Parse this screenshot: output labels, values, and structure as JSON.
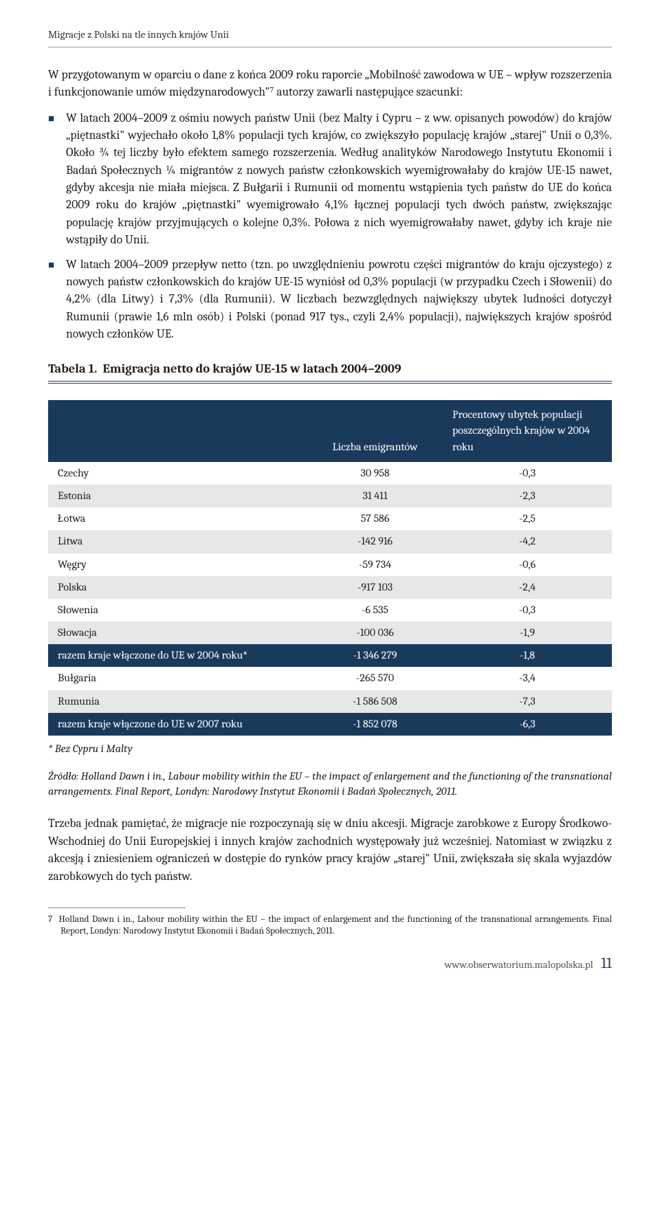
{
  "colors": {
    "brand": "#1a3a5c",
    "text": "#231f20",
    "shade": "#e6e7e9",
    "rule": "#9a9a9a"
  },
  "running_head": "Migracje z Polski na tle innych krajów Unii",
  "intro": "W przygotowanym w oparciu o dane z końca 2009 roku raporcie „Mobilność zawodowa w UE – wpływ rozszerzenia i funkcjonowanie umów międzynarodowych\"⁷ autorzy zawarli następujące szacunki:",
  "bullets": [
    "W latach 2004–2009 z ośmiu nowych państw Unii (bez Malty i Cypru – z ww. opisanych powodów) do krajów „piętnastki\" wyjechało około 1,8% populacji tych krajów, co zwiększyło populację krajów „starej\" Unii o 0,3%. Około ¾ tej liczby było efektem samego rozszerzenia. Według analityków Narodowego Instytutu Ekonomii i Badań Społecznych ¼ migrantów z nowych państw członkowskich wyemigrowałaby do krajów UE-15 nawet, gdyby akcesja nie miała miejsca. Z Bułgarii i Rumunii od momentu wstąpienia tych państw do UE do końca 2009 roku do krajów „piętnastki\" wyemigrowało 4,1% łącznej populacji tych dwóch państw, zwiększając populację krajów przyjmujących o kolejne 0,3%. Połowa z nich wyemigrowałaby nawet, gdyby ich kraje nie wstąpiły do Unii.",
    "W latach 2004–2009 przepływ netto (tzn. po uwzględnieniu powrotu części migrantów do kraju ojczystego) z nowych państw członkowskich do krajów UE-15 wyniósł od 0,3% populacji (w przypadku Czech i Słowenii) do 4,2% (dla Litwy) i 7,3% (dla Rumunii). W liczbach bezwzględnych największy ubytek ludności dotyczył Rumunii (prawie 1,6 mln osób) i Polski (ponad 917 tys., czyli 2,4% populacji), największych krajów spośród nowych członków UE."
  ],
  "table": {
    "label": "Tabela 1.",
    "title": "Emigracja netto do krajów UE-15 w latach 2004–2009",
    "columns": [
      "",
      "Liczba emigrantów",
      "Procentowy ubytek populacji poszczególnych krajów w 2004 roku"
    ],
    "rows": [
      {
        "country": "Czechy",
        "emigrants": "30 958",
        "pct": "-0,3",
        "type": "light"
      },
      {
        "country": "Estonia",
        "emigrants": "31 411",
        "pct": "-2,3",
        "type": "shade"
      },
      {
        "country": "Łotwa",
        "emigrants": "57 586",
        "pct": "-2,5",
        "type": "light"
      },
      {
        "country": "Litwa",
        "emigrants": "-142 916",
        "pct": "-4,2",
        "type": "shade"
      },
      {
        "country": "Węgry",
        "emigrants": "-59 734",
        "pct": "-0,6",
        "type": "light"
      },
      {
        "country": "Polska",
        "emigrants": "-917 103",
        "pct": "-2,4",
        "type": "shade"
      },
      {
        "country": "Słowenia",
        "emigrants": "-6 535",
        "pct": "-0,3",
        "type": "light"
      },
      {
        "country": "Słowacja",
        "emigrants": "-100 036",
        "pct": "-1,9",
        "type": "shade"
      },
      {
        "country": "razem kraje włączone do UE w 2004 roku*",
        "emigrants": "-1 346 279",
        "pct": "-1,8",
        "type": "total"
      },
      {
        "country": "Bułgaria",
        "emigrants": "-265 570",
        "pct": "-3,4",
        "type": "light"
      },
      {
        "country": "Rumunia",
        "emigrants": "-1 586 508",
        "pct": "-7,3",
        "type": "shade"
      },
      {
        "country": "razem kraje włączone do UE w 2007 roku",
        "emigrants": "-1 852 078",
        "pct": "-6,3",
        "type": "total"
      }
    ],
    "footnote": "* Bez Cypru i Malty"
  },
  "source": "Źródło: Holland Dawn i in., Labour mobility within the EU – the impact of enlargement and the functioning of the transnational arrangements. Final Report, Londyn: Narodowy Instytut Ekonomii i Badań Społecznych, 2011.",
  "closing": "Trzeba jednak pamiętać, że migracje nie rozpoczynają się w dniu akcesji. Migracje zarobkowe z Europy Środkowo-Wschodniej do Unii Europejskiej i innych krajów zachodnich występowały już wcześniej. Natomiast w związku z akcesją i zniesieniem ograniczeń w dostępie do rynków pracy krajów „starej\" Unii, zwiększała się skala wyjazdów zarobkowych do tych państw.",
  "page_footnote": {
    "num": "7",
    "text": "Holland Dawn i in., Labour mobility within the EU – the impact of enlargement and the functioning of the transnational arrangements. Final Report, Londyn: Narodowy Instytut Ekonomii i Badań Społecznych, 2011."
  },
  "footer": {
    "url": "www.obserwatorium.malopolska.pl",
    "page": "11"
  }
}
